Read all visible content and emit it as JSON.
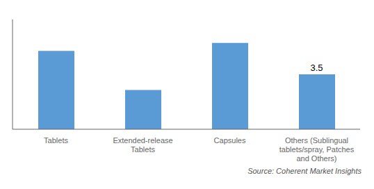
{
  "chart_data": {
    "type": "bar",
    "categories": [
      "Tablets",
      "Extended-release\nTablets",
      "Capsules",
      "Others (Sublingual\ntablets/spray, Patches\nand Others)"
    ],
    "values": [
      5.0,
      2.5,
      5.5,
      3.5
    ],
    "color": "#5B9BD5",
    "ylim": [
      0,
      7
    ],
    "grid": false,
    "tick_labels": "x",
    "annotations": [
      {
        "category": "Others (Sublingual\ntablets/spray, Patches\nand Others)",
        "y": 3.5,
        "text": "3.5"
      }
    ],
    "source": "Source: Coherent Market Insights"
  }
}
